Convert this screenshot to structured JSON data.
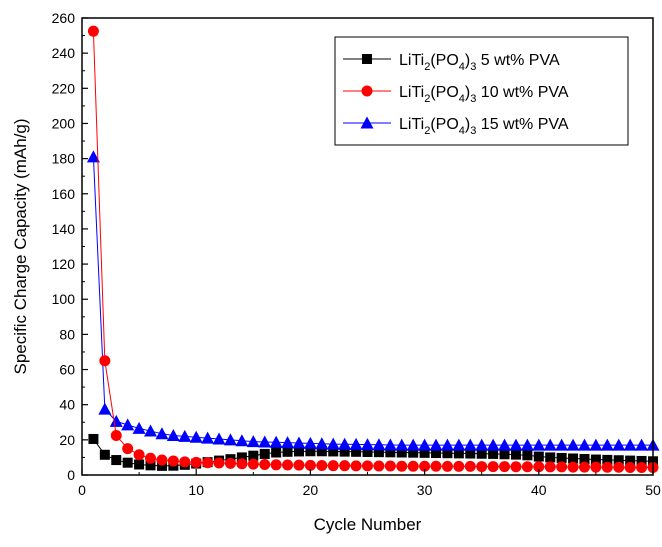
{
  "chart_data": {
    "type": "scatter",
    "title": "",
    "xlabel": "Cycle Number",
    "ylabel": "Specific Charge Capacity (mAh/g)",
    "xlim": [
      0,
      50
    ],
    "ylim": [
      0,
      260
    ],
    "xticks": [
      0,
      10,
      20,
      30,
      40,
      50
    ],
    "yticks": [
      0,
      20,
      40,
      60,
      80,
      100,
      120,
      140,
      160,
      180,
      200,
      220,
      240,
      260
    ],
    "grid": false,
    "legend_position": "top-right",
    "series": [
      {
        "name": "LiTi2(PO4)3 5 wt% PVA",
        "legend": {
          "pre": "LiTi",
          "sub1": "2",
          "mid": "(PO",
          "sub2": "4",
          "post": ")",
          "sub3": "3",
          "tail": " 5 wt% PVA"
        },
        "marker": "square",
        "color": "#000000",
        "x": [
          1,
          2,
          3,
          4,
          5,
          6,
          7,
          8,
          9,
          10,
          11,
          12,
          13,
          14,
          15,
          16,
          17,
          18,
          19,
          20,
          21,
          22,
          23,
          24,
          25,
          26,
          27,
          28,
          29,
          30,
          31,
          32,
          33,
          34,
          35,
          36,
          37,
          38,
          39,
          40,
          41,
          42,
          43,
          44,
          45,
          46,
          47,
          48,
          49,
          50
        ],
        "y": [
          20.5,
          11.5,
          8.5,
          7,
          6,
          5.5,
          5.2,
          5.3,
          5.8,
          6.5,
          7.3,
          8.2,
          9,
          10,
          11,
          12,
          12.8,
          13.2,
          13.4,
          13.5,
          13.5,
          13.4,
          13.3,
          13.2,
          13.1,
          13,
          12.9,
          12.8,
          12.7,
          12.6,
          12.5,
          12.4,
          12.3,
          12.2,
          12.1,
          12,
          11.8,
          11.6,
          11.2,
          10.5,
          10,
          9.7,
          9.4,
          9.1,
          8.8,
          8.6,
          8.4,
          8.2,
          8,
          7.8
        ]
      },
      {
        "name": "LiTi2(PO4)3 10 wt% PVA",
        "legend": {
          "pre": "LiTi",
          "sub1": "2",
          "mid": "(PO",
          "sub2": "4",
          "post": ")",
          "sub3": "3",
          "tail": " 10 wt% PVA"
        },
        "marker": "circle",
        "color": "#ff0000",
        "x": [
          1,
          2,
          3,
          4,
          5,
          6,
          7,
          8,
          9,
          10,
          11,
          12,
          13,
          14,
          15,
          16,
          17,
          18,
          19,
          20,
          21,
          22,
          23,
          24,
          25,
          26,
          27,
          28,
          29,
          30,
          31,
          32,
          33,
          34,
          35,
          36,
          37,
          38,
          39,
          40,
          41,
          42,
          43,
          44,
          45,
          46,
          47,
          48,
          49,
          50
        ],
        "y": [
          252.5,
          65,
          22.5,
          15,
          11.5,
          9.5,
          8.5,
          8,
          7.5,
          7.2,
          7,
          6.8,
          6.6,
          6.4,
          6.2,
          6,
          5.8,
          5.7,
          5.6,
          5.5,
          5.4,
          5.3,
          5.3,
          5.2,
          5.2,
          5.1,
          5.1,
          5,
          5,
          5,
          5,
          4.9,
          4.9,
          4.9,
          4.8,
          4.8,
          4.8,
          4.7,
          4.7,
          4.7,
          4.6,
          4.6,
          4.5,
          4.5,
          4.5,
          4.4,
          4.4,
          4.3,
          4.3,
          4.3
        ]
      },
      {
        "name": "LiTi2(PO4)3 15 wt% PVA",
        "legend": {
          "pre": "LiTi",
          "sub1": "2",
          "mid": "(PO",
          "sub2": "4",
          "post": ")",
          "sub3": "3",
          "tail": " 15 wt% PVA"
        },
        "marker": "triangle",
        "color": "#0000ff",
        "x": [
          1,
          2,
          3,
          4,
          5,
          6,
          7,
          8,
          9,
          10,
          11,
          12,
          13,
          14,
          15,
          16,
          17,
          18,
          19,
          20,
          21,
          22,
          23,
          24,
          25,
          26,
          27,
          28,
          29,
          30,
          31,
          32,
          33,
          34,
          35,
          36,
          37,
          38,
          39,
          40,
          41,
          42,
          43,
          44,
          45,
          46,
          47,
          48,
          49,
          50
        ],
        "y": [
          181,
          37.5,
          30.5,
          28.5,
          26.5,
          25,
          23.5,
          22.5,
          22,
          21.5,
          21,
          20.5,
          20,
          19.5,
          19,
          18.8,
          18.6,
          18.4,
          18.2,
          18,
          17.8,
          17.6,
          17.5,
          17.4,
          17.3,
          17.2,
          17.1,
          17,
          17,
          17,
          17,
          17,
          17,
          17,
          17,
          17,
          17,
          17,
          17,
          17,
          17,
          17,
          17,
          17,
          17,
          17,
          17,
          17,
          17,
          17
        ]
      }
    ]
  }
}
